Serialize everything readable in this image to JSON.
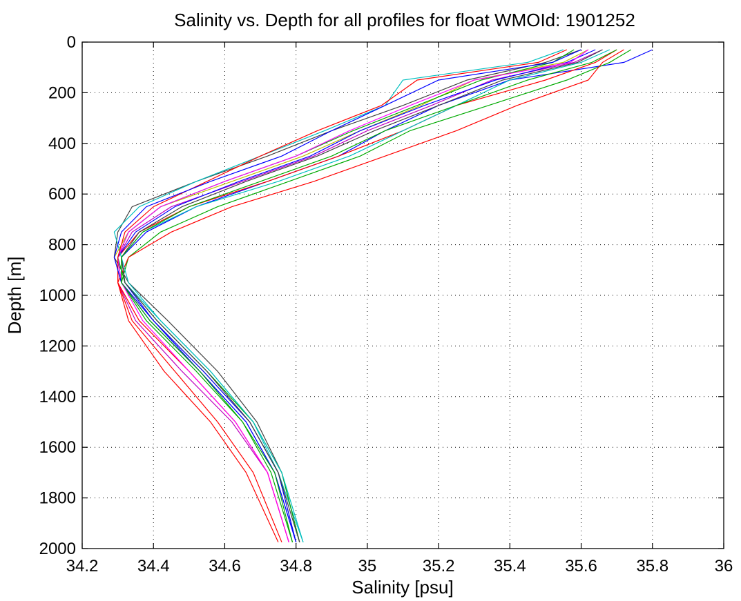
{
  "chart_data": {
    "type": "line",
    "title": "Salinity vs. Depth for all profiles for float WMOId: 1901252",
    "xlabel": "Salinity [psu]",
    "ylabel": "Depth [m]",
    "xlim": [
      34.2,
      36
    ],
    "ylim": [
      0,
      2000
    ],
    "y_reversed": true,
    "grid": true,
    "legend": "none",
    "x_ticks": [
      "34.2",
      "34.4",
      "34.6",
      "34.8",
      "35",
      "35.2",
      "35.4",
      "35.6",
      "35.8",
      "36"
    ],
    "y_ticks": [
      "0",
      "200",
      "400",
      "600",
      "800",
      "1000",
      "1200",
      "1400",
      "1600",
      "1800",
      "2000"
    ],
    "x_tick_values": [
      34.2,
      34.4,
      34.6,
      34.8,
      35.0,
      35.2,
      35.4,
      35.6,
      35.8,
      36.0
    ],
    "y_tick_values": [
      0,
      200,
      400,
      600,
      800,
      1000,
      1200,
      1400,
      1600,
      1800,
      2000
    ],
    "depth_levels": [
      30,
      80,
      150,
      250,
      350,
      450,
      550,
      650,
      750,
      850,
      950,
      1100,
      1300,
      1500,
      1700,
      1975
    ],
    "series": [
      {
        "color": "#0000ff",
        "values": [
          35.8,
          35.72,
          35.4,
          35.2,
          35.05,
          34.92,
          34.72,
          34.52,
          34.38,
          34.31,
          34.32,
          34.4,
          34.53,
          34.66,
          34.74,
          34.8
        ]
      },
      {
        "color": "#00aa00",
        "values": [
          35.74,
          35.68,
          35.56,
          35.34,
          35.12,
          34.98,
          34.78,
          34.58,
          34.42,
          34.33,
          34.31,
          34.38,
          34.52,
          34.65,
          34.73,
          34.79
        ]
      },
      {
        "color": "#ff0000",
        "values": [
          35.7,
          35.64,
          35.5,
          35.25,
          35.1,
          34.92,
          34.72,
          34.5,
          34.36,
          34.3,
          34.3,
          34.34,
          34.46,
          34.58,
          34.68,
          34.76
        ]
      },
      {
        "color": "#00bfbf",
        "values": [
          35.68,
          35.6,
          35.4,
          35.25,
          35.1,
          34.95,
          34.75,
          34.52,
          34.37,
          34.31,
          34.32,
          34.42,
          34.56,
          34.68,
          34.75,
          34.82
        ]
      },
      {
        "color": "#bf00bf",
        "values": [
          35.66,
          35.58,
          35.35,
          35.18,
          35.0,
          34.85,
          34.65,
          34.45,
          34.34,
          34.3,
          34.3,
          34.35,
          34.48,
          34.62,
          34.72,
          34.78
        ]
      },
      {
        "color": "#bfbf00",
        "values": [
          35.62,
          35.55,
          35.3,
          35.15,
          34.98,
          34.82,
          34.62,
          34.42,
          34.33,
          34.29,
          34.31,
          34.4,
          34.54,
          34.67,
          34.75,
          34.8
        ]
      },
      {
        "color": "#404040",
        "values": [
          35.6,
          35.5,
          35.28,
          35.1,
          34.9,
          34.72,
          34.52,
          34.34,
          34.3,
          34.29,
          34.33,
          34.44,
          34.58,
          34.69,
          34.76,
          34.81
        ]
      },
      {
        "color": "#ff0000",
        "values": [
          35.72,
          35.66,
          35.62,
          35.42,
          35.25,
          35.05,
          34.85,
          34.62,
          34.45,
          34.33,
          34.3,
          34.36,
          34.5,
          34.63,
          34.72,
          34.78
        ]
      },
      {
        "color": "#0000ff",
        "values": [
          35.64,
          35.56,
          35.36,
          35.16,
          34.98,
          34.84,
          34.64,
          34.46,
          34.35,
          34.3,
          34.31,
          34.39,
          34.53,
          34.66,
          34.74,
          34.8
        ]
      },
      {
        "color": "#00aa00",
        "values": [
          35.58,
          35.52,
          35.32,
          35.14,
          34.96,
          34.8,
          34.6,
          34.42,
          34.33,
          34.3,
          34.32,
          34.41,
          34.55,
          34.68,
          34.76,
          34.81
        ]
      },
      {
        "color": "#00bfbf",
        "values": [
          35.55,
          35.45,
          35.1,
          35.05,
          34.88,
          34.7,
          34.52,
          34.36,
          34.29,
          34.31,
          34.33,
          34.42,
          34.56,
          34.68,
          34.76,
          34.82
        ]
      },
      {
        "color": "#ff00ff",
        "values": [
          35.62,
          35.57,
          35.3,
          35.12,
          34.95,
          34.8,
          34.6,
          34.42,
          34.33,
          34.3,
          34.31,
          34.37,
          34.5,
          34.63,
          34.72,
          34.78
        ]
      },
      {
        "color": "#ff0000",
        "values": [
          35.56,
          35.48,
          35.14,
          35.04,
          34.86,
          34.7,
          34.55,
          34.4,
          34.32,
          34.3,
          34.3,
          34.33,
          34.43,
          34.56,
          34.66,
          34.75
        ]
      },
      {
        "color": "#0000ff",
        "values": [
          35.6,
          35.52,
          35.2,
          35.05,
          34.9,
          34.76,
          34.56,
          34.38,
          34.31,
          34.29,
          34.31,
          34.4,
          34.54,
          34.67,
          34.75,
          34.8
        ]
      },
      {
        "color": "#404040",
        "values": [
          35.66,
          35.59,
          35.38,
          35.2,
          35.02,
          34.86,
          34.66,
          34.48,
          34.36,
          34.31,
          34.32,
          34.41,
          34.55,
          34.67,
          34.75,
          34.81
        ]
      },
      {
        "color": "#00aa00",
        "values": [
          35.7,
          35.63,
          35.45,
          35.25,
          35.05,
          34.9,
          34.7,
          34.5,
          34.37,
          34.31,
          34.31,
          34.39,
          34.53,
          34.65,
          34.74,
          34.79
        ]
      }
    ]
  }
}
